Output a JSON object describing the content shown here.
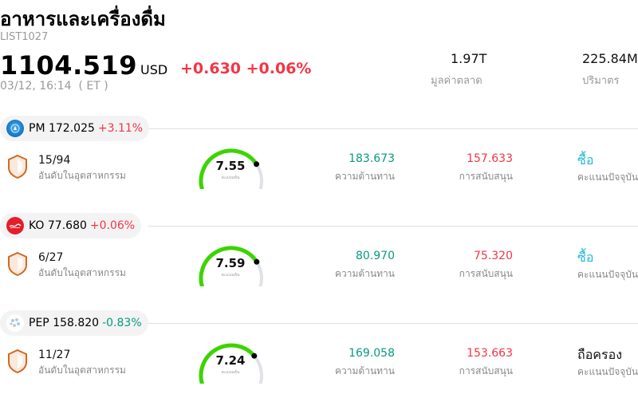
{
  "header": {
    "title": "อาหารและเครื่องดื่ม",
    "code": "LIST1027",
    "price": "1104.519",
    "currency": "USD",
    "change": "+0.630 +0.06%",
    "timestamp": "03/12, 16:14  ( ET )",
    "market_cap": {
      "value": "1.97T",
      "label": "มูลค่าตลาด"
    },
    "volume": {
      "value": "225.84M",
      "label": "ปริมาตร"
    }
  },
  "colors": {
    "up": "#f23645",
    "down": "#089981",
    "buy": "#22b8cf",
    "gauge": "#3cd400"
  },
  "stocks": [
    {
      "symbol": "PM",
      "price": "172.025",
      "change": "+3.11%",
      "direction": "up",
      "logo_icon": "pm-globe-logo",
      "rank": "15/94",
      "rank_label": "อันดับในอุตสาหกรรม",
      "score": "7.55",
      "score_fraction": 0.755,
      "score_label": "คะแนนหุ้น",
      "resistance": "183.673",
      "resistance_label": "ความต้านทาน",
      "support": "157.633",
      "support_label": "การสนับสนุน",
      "rating": "ซื้อ",
      "rating_type": "buy",
      "rating_label": "คะแนนปัจจุบัน"
    },
    {
      "symbol": "KO",
      "price": "77.680",
      "change": "+0.06%",
      "direction": "up",
      "logo_icon": "coca-cola-logo",
      "rank": "6/27",
      "rank_label": "อันดับในอุตสาหกรรม",
      "score": "7.59",
      "score_fraction": 0.759,
      "score_label": "คะแนนหุ้น",
      "resistance": "80.970",
      "resistance_label": "ความต้านทาน",
      "support": "75.320",
      "support_label": "การสนับสนุน",
      "rating": "ซื้อ",
      "rating_type": "buy",
      "rating_label": "คะแนนปัจจุบัน"
    },
    {
      "symbol": "PEP",
      "price": "158.820",
      "change": "-0.83%",
      "direction": "down",
      "logo_icon": "pepsico-logo",
      "rank": "11/27",
      "rank_label": "อันดับในอุตสาหกรรม",
      "score": "7.24",
      "score_fraction": 0.724,
      "score_label": "คะแนนหุ้น",
      "resistance": "169.058",
      "resistance_label": "ความต้านทาน",
      "support": "153.663",
      "support_label": "การสนับสนุน",
      "rating": "ถือครอง",
      "rating_type": "hold",
      "rating_label": "คะแนนปัจจุบัน"
    }
  ]
}
